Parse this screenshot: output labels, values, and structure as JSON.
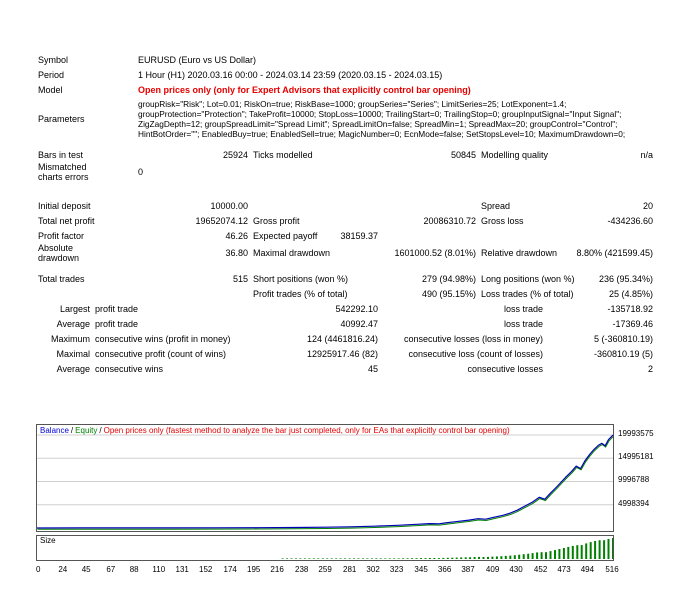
{
  "stats": {
    "symbol": {
      "label": "Symbol",
      "value": "EURUSD (Euro vs US Dollar)"
    },
    "period": {
      "label": "Period",
      "value": "1 Hour (H1) 2020.03.16 00:00 - 2024.03.14 23:59 (2020.03.15 - 2024.03.15)"
    },
    "model": {
      "label": "Model",
      "value": "Open prices only (only for Expert Advisors that explicitly control bar opening)"
    },
    "parameters": {
      "label": "Parameters",
      "value": "groupRisk=\"Risk\"; Lot=0.01; RiskOn=true; RiskBase=1000; groupSeries=\"Series\"; LimitSeries=25; LotExponent=1.4; groupProtection=\"Protection\"; TakeProfit=10000; StopLoss=10000; TrailingStart=0; TrailingStop=0; groupInputSignal=\"Input Signal\"; ZigZagDepth=12; groupSpreadLimit=\"Spread Limit\"; SpreadLimitOn=false; SpreadMin=1; SpreadMax=20; groupControl=\"Control\"; HintBotOrder=\"\"; EnabledBuy=true; EnabledSell=true; MagicNumber=0; EcnMode=false; SetStopsLevel=10; MaximumDrawdown=0;"
    },
    "bars_in_test": {
      "label": "Bars in test",
      "value": "25924"
    },
    "ticks_modelled": {
      "label": "Ticks modelled",
      "value": "50845"
    },
    "modelling_quality": {
      "label": "Modelling quality",
      "value": "n/a"
    },
    "mismatched_charts_errors": {
      "label": "Mismatched charts errors",
      "value": "0"
    },
    "initial_deposit": {
      "label": "Initial deposit",
      "value": "10000.00"
    },
    "spread": {
      "label": "Spread",
      "value": "20"
    },
    "total_net_profit": {
      "label": "Total net profit",
      "value": "19652074.12"
    },
    "gross_profit": {
      "label": "Gross profit",
      "value": "20086310.72"
    },
    "gross_loss": {
      "label": "Gross loss",
      "value": "-434236.60"
    },
    "profit_factor": {
      "label": "Profit factor",
      "value": "46.26"
    },
    "expected_payoff": {
      "label": "Expected payoff",
      "value": "38159.37"
    },
    "absolute_drawdown": {
      "label": "Absolute drawdown",
      "value": "36.80"
    },
    "maximal_drawdown": {
      "label": "Maximal drawdown",
      "value": "1601000.52 (8.01%)"
    },
    "relative_drawdown": {
      "label": "Relative drawdown",
      "value": "8.80% (421599.45)"
    },
    "total_trades": {
      "label": "Total trades",
      "value": "515"
    },
    "short_positions": {
      "label": "Short positions (won %)",
      "value": "279 (94.98%)"
    },
    "long_positions": {
      "label": "Long positions (won %)",
      "value": "236 (95.34%)"
    },
    "profit_trades": {
      "label": "Profit trades (% of total)",
      "value": "490 (95.15%)"
    },
    "loss_trades": {
      "label": "Loss trades (% of total)",
      "value": "25 (4.85%)"
    },
    "largest": {
      "label": "Largest",
      "l1": "profit trade",
      "v1": "542292.10",
      "l2": "loss trade",
      "v2": "-135718.92"
    },
    "average_trade": {
      "label": "Average",
      "l1": "profit trade",
      "v1": "40992.47",
      "l2": "loss trade",
      "v2": "-17369.46"
    },
    "maximum_consecutive": {
      "label": "Maximum",
      "l1": "consecutive wins (profit in money)",
      "v1": "124 (4461816.24)",
      "l2": "consecutive losses (loss in money)",
      "v2": "5 (-360810.19)"
    },
    "maximal_consecutive": {
      "label": "Maximal",
      "l1": "consecutive profit (count of wins)",
      "v1": "12925917.46 (82)",
      "l2": "consecutive loss (count of losses)",
      "v2": "-360810.19 (5)"
    },
    "average_consecutive": {
      "label": "Average",
      "l1": "consecutive wins",
      "v1": "45",
      "l2": "consecutive losses",
      "v2": "2"
    }
  },
  "chart": {
    "legend": {
      "balance": "Balance",
      "sep": "/",
      "equity": "Equity",
      "note": "Open prices only (fastest method to analyze the bar just completed, only for EAs that explicitly control bar opening)"
    },
    "size_label": "Size",
    "colors": {
      "balance": "#0000b4",
      "equity": "#008000",
      "size_bars": "#008000"
    }
  },
  "chart_data": {
    "type": "line",
    "title": "Balance / Equity curve with trade size histogram",
    "x_max": 516,
    "x_ticks": [
      0,
      24,
      45,
      67,
      88,
      110,
      131,
      152,
      174,
      195,
      216,
      238,
      259,
      281,
      302,
      323,
      345,
      366,
      387,
      409,
      430,
      452,
      473,
      494,
      516
    ],
    "y_ticks": [
      4998394,
      9996788,
      14995181,
      19993575
    ],
    "legend_position": "top-left",
    "grid": "horizontal",
    "series": [
      {
        "name": "Balance",
        "color": "#0000b4",
        "points": [
          [
            0,
            10000
          ],
          [
            40,
            14000
          ],
          [
            80,
            20000
          ],
          [
            120,
            30000
          ],
          [
            160,
            47000
          ],
          [
            200,
            75000
          ],
          [
            230,
            115000
          ],
          [
            259,
            180000
          ],
          [
            281,
            260000
          ],
          [
            302,
            390000
          ],
          [
            323,
            580000
          ],
          [
            340,
            800000
          ],
          [
            352,
            950000
          ],
          [
            360,
            900000
          ],
          [
            366,
            1100000
          ],
          [
            375,
            1350000
          ],
          [
            387,
            1700000
          ],
          [
            395,
            2000000
          ],
          [
            402,
            1900000
          ],
          [
            409,
            2300000
          ],
          [
            417,
            2700000
          ],
          [
            424,
            3200000
          ],
          [
            430,
            3800000
          ],
          [
            437,
            4700000
          ],
          [
            444,
            5600000
          ],
          [
            450,
            6600000
          ],
          [
            455,
            6200000
          ],
          [
            460,
            7500000
          ],
          [
            465,
            8700000
          ],
          [
            470,
            10000000
          ],
          [
            474,
            11000000
          ],
          [
            479,
            12200000
          ],
          [
            483,
            13300000
          ],
          [
            487,
            12800000
          ],
          [
            491,
            14500000
          ],
          [
            495,
            15800000
          ],
          [
            499,
            16900000
          ],
          [
            503,
            17800000
          ],
          [
            506,
            18200000
          ],
          [
            509,
            17700000
          ],
          [
            512,
            19000000
          ],
          [
            516,
            19993575
          ]
        ]
      },
      {
        "name": "Equity",
        "color": "#008000",
        "derived": "tracks balance"
      }
    ],
    "size_panel": {
      "label": "Size",
      "bar_color": "#008000",
      "proportional_to": "Balance"
    }
  }
}
